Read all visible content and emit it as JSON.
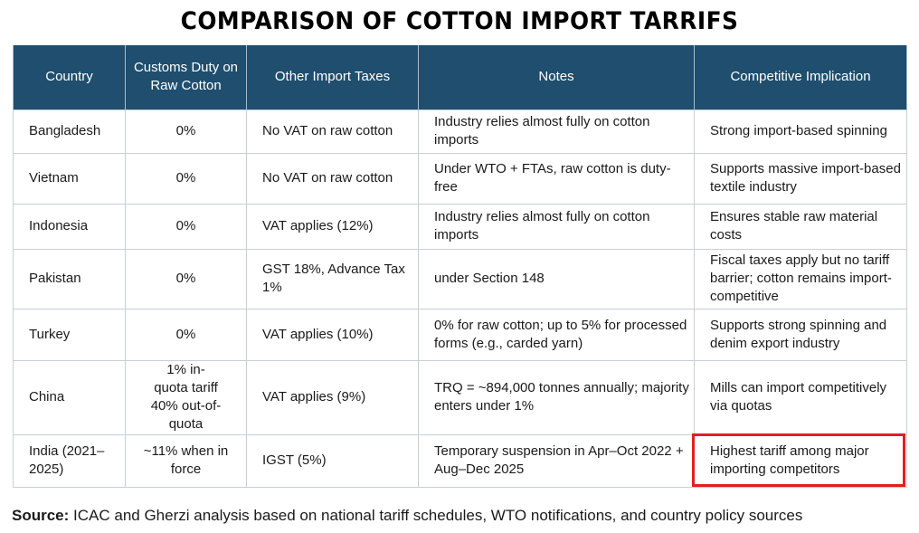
{
  "title": "COMPARISON OF COTTON IMPORT TARRIFS",
  "table": {
    "headers": [
      "Country",
      "Customs Duty on Raw Cotton",
      "Other Import Taxes",
      "Notes",
      "Competitive Implication"
    ],
    "rows": [
      {
        "country": "Bangladesh",
        "duty": "0%",
        "taxes": "No VAT on raw cotton",
        "notes": "Industry relies almost fully on cotton imports",
        "implication": "Strong import-based spinning"
      },
      {
        "country": "Vietnam",
        "duty": "0%",
        "taxes": "No VAT on raw cotton",
        "notes": "Under WTO + FTAs, raw cotton is duty-free",
        "implication": "Supports massive import-based textile industry"
      },
      {
        "country": "Indonesia",
        "duty": "0%",
        "taxes": "VAT applies (12%)",
        "notes": "Industry relies almost fully on cotton imports",
        "implication": "Ensures stable raw material costs"
      },
      {
        "country": "Pakistan",
        "duty": "0%",
        "taxes": "GST 18%, Advance Tax 1%",
        "notes": "under Section 148",
        "implication": "Fiscal taxes apply but no tariff barrier; cotton remains import-competitive"
      },
      {
        "country": "Turkey",
        "duty": "0%",
        "taxes": "VAT applies (10%)",
        "notes": "0% for raw cotton; up to 5% for processed forms (e.g., carded yarn)",
        "implication": "Supports strong spinning and denim export industry"
      },
      {
        "country": "China",
        "duty_line1": "1% in-quota tariff",
        "duty_line2": "40% out-of-quota",
        "taxes": "VAT applies (9%)",
        "notes": "TRQ = ~894,000 tonnes annually; majority enters under 1%",
        "implication": "Mills can import competitively via quotas"
      },
      {
        "country": "India (2021–2025)",
        "duty": "~11% when in force",
        "taxes": "IGST (5%)",
        "notes": "Temporary suspension in Apr–Oct 2022 + Aug–Dec 2025",
        "implication": "Highest tariff among major importing competitors"
      }
    ]
  },
  "highlight": {
    "color": "#e02020"
  },
  "colors": {
    "header_bg": "#1f4e6e",
    "header_text": "#ffffff"
  },
  "source": {
    "label": "Source:",
    "text": " ICAC and Gherzi analysis based on national tariff schedules, WTO notifications, and country policy sources"
  }
}
